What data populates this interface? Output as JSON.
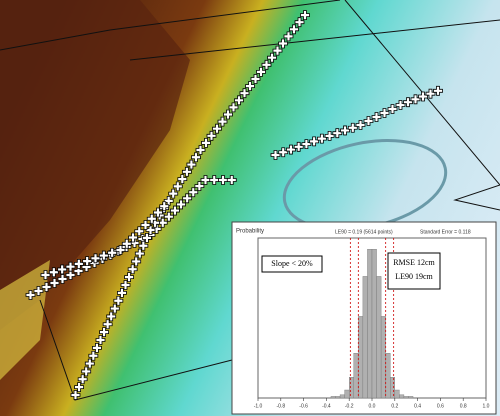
{
  "inset": {
    "boxes": {
      "slope": "Slope < 20%",
      "rmse": "RMSE 12cm",
      "le90": "LE90 19cm"
    },
    "header": {
      "left": "LE90 = 0.19 (5614 points)",
      "right": "Standard Error = 0.118"
    },
    "chart_data": {
      "type": "histogram",
      "y_label": "Probability",
      "color": "#b0b0b0",
      "bins": [
        -1,
        -0.96,
        -0.92,
        -0.88,
        -0.84,
        -0.8,
        -0.76,
        -0.72,
        -0.68,
        -0.64,
        -0.6,
        -0.56,
        -0.52,
        -0.48,
        -0.44,
        -0.4,
        -0.36,
        -0.32,
        -0.28,
        -0.24,
        -0.2,
        -0.16,
        -0.12,
        -0.08,
        -0.04,
        0,
        0.04,
        0.08,
        0.12,
        0.16,
        0.2,
        0.24,
        0.28,
        0.32,
        0.36,
        0.4,
        0.44,
        0.48,
        0.52,
        0.56,
        0.6,
        0.64,
        0.68,
        0.72,
        0.76,
        0.8,
        0.84,
        0.88,
        0.92,
        0.96,
        1
      ],
      "values": [
        0,
        0,
        0,
        0,
        0,
        0,
        0,
        0,
        0,
        0,
        0,
        0,
        0,
        0,
        0,
        0,
        1,
        1,
        2,
        5,
        13,
        28,
        51,
        76,
        93,
        93,
        76,
        51,
        28,
        13,
        5,
        2,
        1,
        1,
        0,
        0,
        0,
        0,
        0,
        0,
        0,
        0,
        0,
        0,
        0,
        0,
        0,
        0,
        0,
        0
      ],
      "xlim": [
        -1,
        1
      ],
      "ylim": [
        0,
        100
      ],
      "xticks": [
        {
          "value": -1,
          "label": "-1.0"
        },
        -0.8,
        -0.6,
        -0.4,
        -0.2,
        {
          "value": 0,
          "label": "0.0"
        },
        0.2,
        0.4,
        0.6,
        0.8,
        {
          "value": 1,
          "label": "1.0"
        }
      ],
      "reference_lines": [
        -0.19,
        -0.12,
        0.12,
        0.19
      ],
      "reference_color": "#cc0000"
    }
  }
}
